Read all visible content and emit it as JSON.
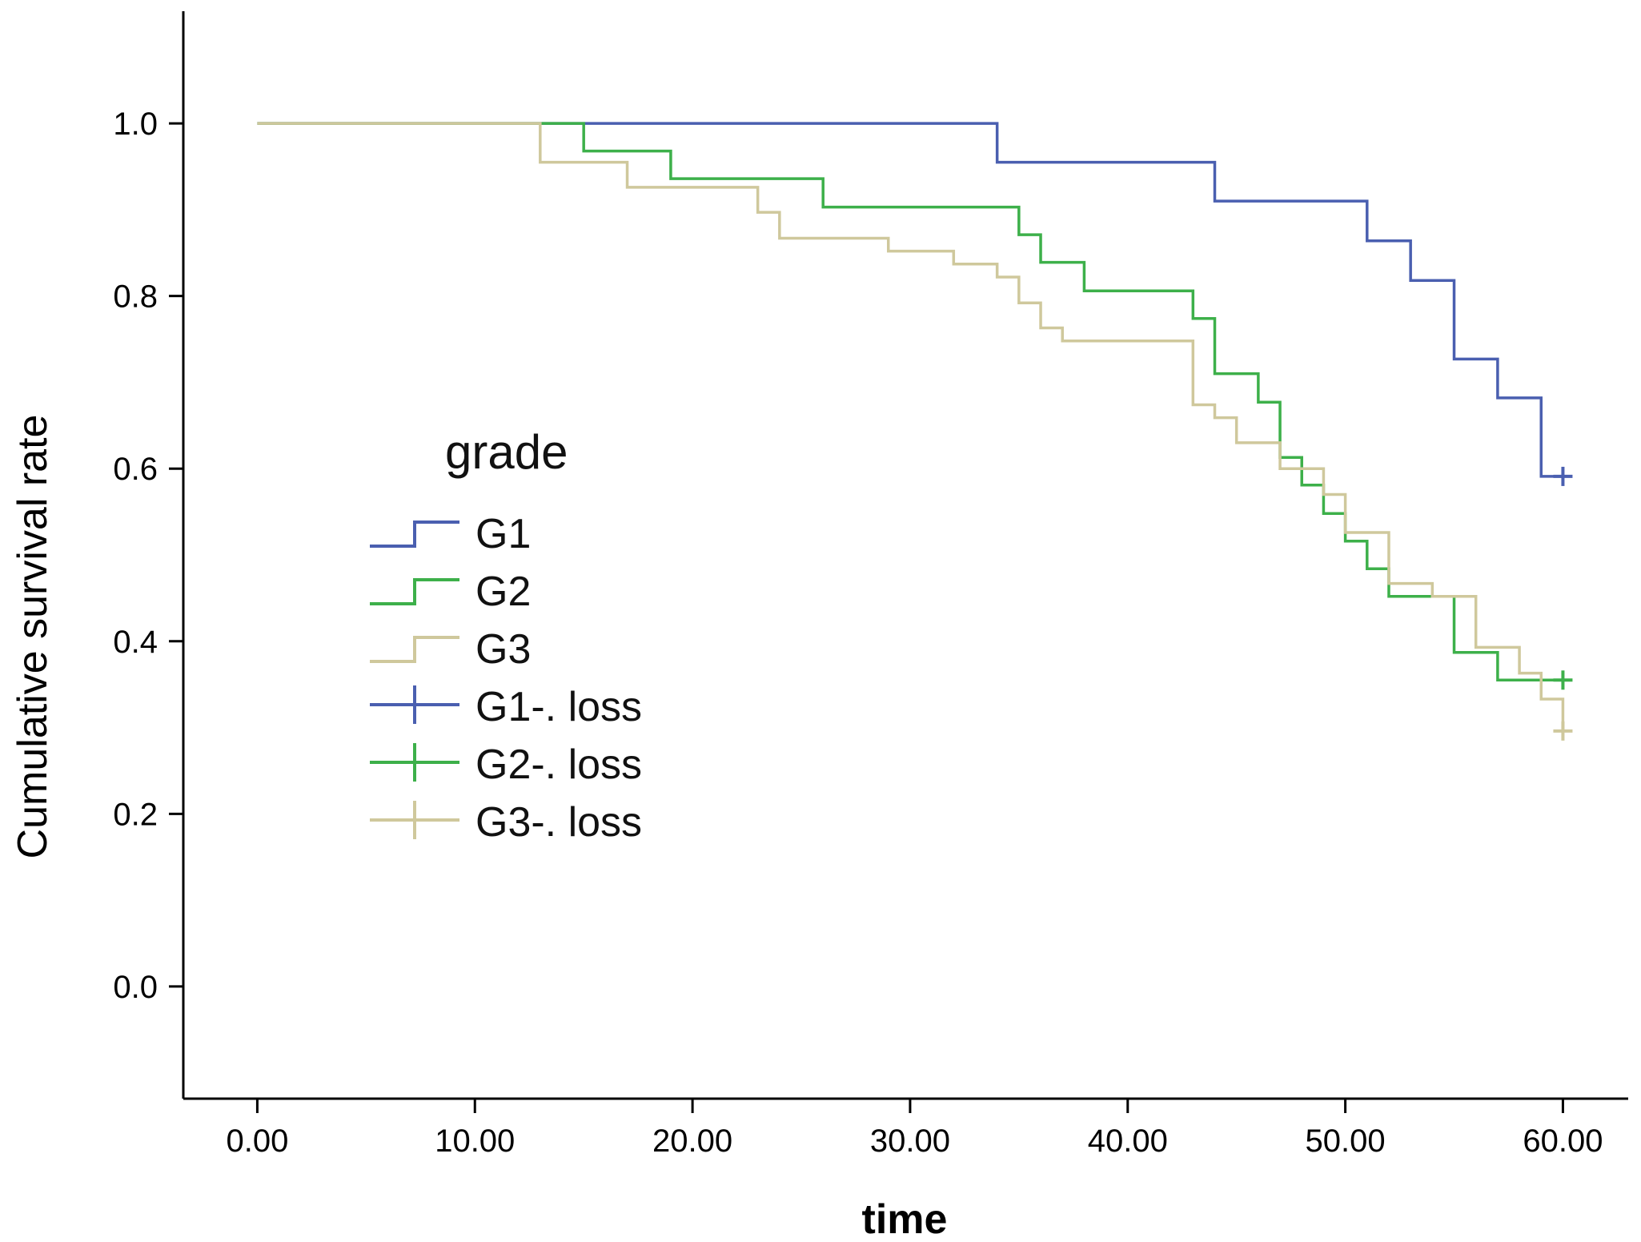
{
  "chart_data": {
    "type": "line",
    "title": "",
    "xlabel": "time",
    "ylabel": "Cumulative survival rate",
    "xlim": [
      -3.4,
      63
    ],
    "ylim": [
      -0.13,
      1.13
    ],
    "xticks": [
      "0.00",
      "10.00",
      "20.00",
      "30.00",
      "40.00",
      "50.00",
      "60.00"
    ],
    "xtick_values": [
      0,
      10,
      20,
      30,
      40,
      50,
      60
    ],
    "yticks": [
      "0.0",
      "0.2",
      "0.4",
      "0.6",
      "0.8",
      "1.0"
    ],
    "ytick_values": [
      0,
      0.2,
      0.4,
      0.6,
      0.8,
      1.0
    ],
    "grid": false,
    "legend_title": "grade",
    "legend_position": "center-left",
    "legend_entries": [
      "G1",
      "G2",
      "G3",
      "G1-. loss",
      "G2-. loss",
      "G3-. loss"
    ],
    "series": [
      {
        "name": "G1",
        "color": "#4a5fb0",
        "step": true,
        "x": [
          0,
          34,
          44,
          51,
          53,
          55,
          57,
          59,
          60
        ],
        "y": [
          1.0,
          0.955,
          0.91,
          0.864,
          0.818,
          0.727,
          0.682,
          0.591,
          0.591
        ],
        "censored": [
          {
            "x": 60,
            "y": 0.591
          }
        ]
      },
      {
        "name": "G2",
        "color": "#3db04a",
        "step": true,
        "x": [
          0,
          15,
          19,
          26,
          35,
          36,
          38,
          43,
          44,
          46,
          47,
          48,
          49,
          50,
          51,
          52,
          55,
          57,
          60
        ],
        "y": [
          1.0,
          0.968,
          0.936,
          0.903,
          0.871,
          0.839,
          0.806,
          0.774,
          0.71,
          0.677,
          0.613,
          0.581,
          0.548,
          0.516,
          0.484,
          0.452,
          0.387,
          0.355,
          0.355
        ],
        "censored": [
          {
            "x": 60,
            "y": 0.355
          }
        ]
      },
      {
        "name": "G3",
        "color": "#cfc89c",
        "step": true,
        "x": [
          0,
          13,
          17,
          23,
          24,
          29,
          32,
          34,
          35,
          36,
          37,
          43,
          44,
          45,
          47,
          49,
          50,
          52,
          54,
          56,
          58,
          59,
          60
        ],
        "y": [
          1.0,
          0.955,
          0.926,
          0.897,
          0.867,
          0.852,
          0.837,
          0.822,
          0.792,
          0.763,
          0.748,
          0.674,
          0.659,
          0.63,
          0.6,
          0.57,
          0.526,
          0.467,
          0.452,
          0.393,
          0.363,
          0.333,
          0.296
        ],
        "censored": [
          {
            "x": 60,
            "y": 0.296
          }
        ]
      }
    ]
  }
}
